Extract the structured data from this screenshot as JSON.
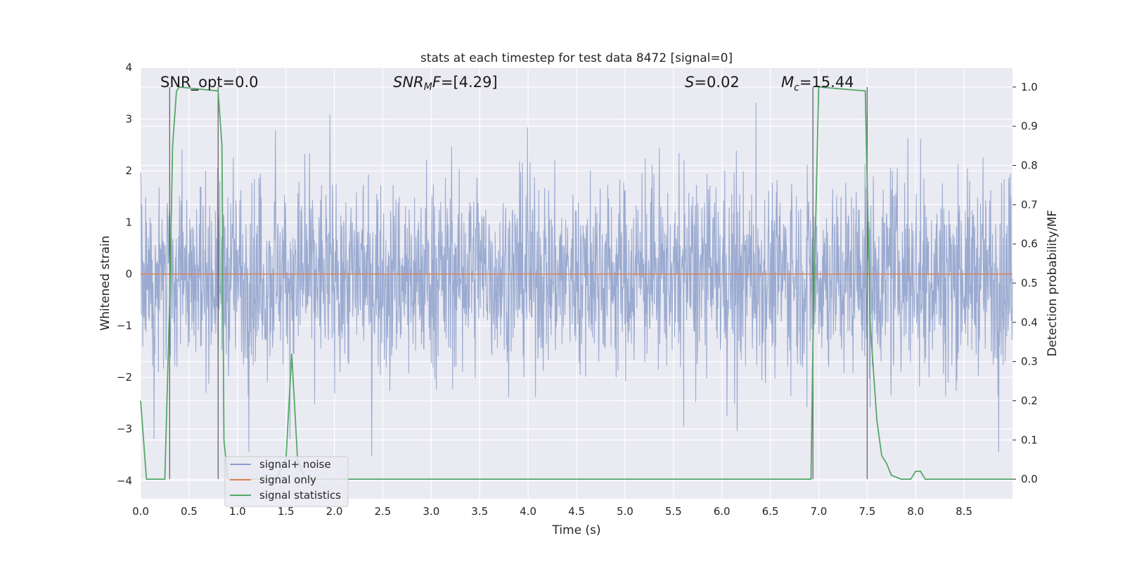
{
  "chart_data": {
    "type": "line",
    "title": "stats at each timestep for test data 8472 [signal=0]",
    "xlabel": "Time (s)",
    "ylabel": "Whitened strain",
    "ylabel_right": "Detection probability/MF",
    "xlim": [
      0,
      9.0
    ],
    "ylim": [
      -4.35,
      4.0
    ],
    "ylim_right": [
      -0.05,
      1.05
    ],
    "x_ticks": [
      "0.0",
      "0.5",
      "1.0",
      "1.5",
      "2.0",
      "2.5",
      "3.0",
      "3.5",
      "4.0",
      "4.5",
      "5.0",
      "5.5",
      "6.0",
      "6.5",
      "7.0",
      "7.5",
      "8.0",
      "8.5"
    ],
    "y_ticks": [
      "4",
      "3",
      "2",
      "1",
      "0",
      "−1",
      "−2",
      "−3",
      "−4"
    ],
    "y_ticks_right": [
      "1.0",
      "0.9",
      "0.8",
      "0.7",
      "0.6",
      "0.5",
      "0.4",
      "0.3",
      "0.2",
      "0.1",
      "0.0"
    ],
    "grid": true,
    "annotations": {
      "snr_opt": "SNR_opt=0.0",
      "snr_mf": "=[4.29]",
      "s_value": "=0.02",
      "mc_value": "=15.44"
    },
    "vertical_markers": [
      0.3,
      0.8,
      6.94,
      7.5
    ],
    "series": [
      {
        "name": "signal+ noise",
        "color": "#8c9fca",
        "amplitude_range": [
          -3.7,
          3.6
        ]
      },
      {
        "name": "signal only",
        "color": "#dd8452",
        "x": [
          0,
          9.0
        ],
        "y": [
          0,
          0
        ]
      },
      {
        "name": "signal statistics",
        "color": "#55a868",
        "axis": "right",
        "x": [
          0.0,
          0.06,
          0.25,
          0.3,
          0.33,
          0.37,
          0.4,
          0.8,
          0.84,
          0.86,
          0.9,
          1.0,
          1.4,
          1.5,
          1.56,
          1.62,
          1.7,
          3.0,
          6.0,
          6.6,
          6.85,
          6.92,
          6.94,
          7.0,
          7.48,
          7.53,
          7.6,
          7.65,
          7.7,
          7.75,
          7.85,
          7.95,
          8.0,
          8.05,
          8.1,
          8.15,
          9.0
        ],
        "y": [
          0.2,
          0.0,
          0.0,
          0.45,
          0.85,
          0.99,
          1.0,
          0.99,
          0.85,
          0.1,
          0.0,
          0.0,
          0.0,
          0.05,
          0.32,
          0.05,
          0.0,
          0.0,
          0.0,
          0.0,
          0.0,
          0.0,
          0.35,
          1.0,
          0.99,
          0.4,
          0.15,
          0.06,
          0.04,
          0.01,
          0.0,
          0.0,
          0.02,
          0.02,
          0.0,
          0.0,
          0.0
        ]
      }
    ],
    "legend": {
      "placement": "lower-left",
      "entries": [
        "signal+ noise",
        "signal only",
        "signal statistics"
      ]
    }
  }
}
